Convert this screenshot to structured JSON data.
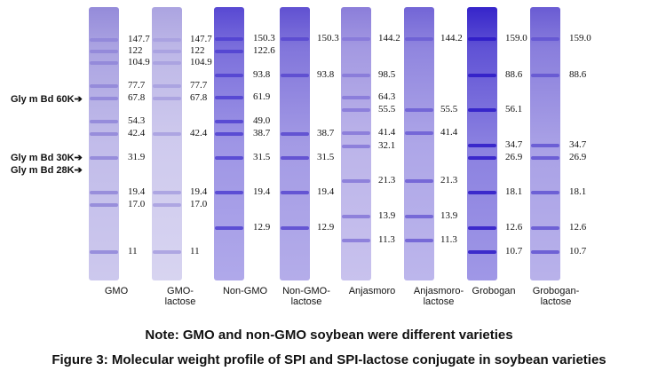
{
  "lanes": [
    {
      "name": "GMO",
      "color": "#8f85d8",
      "bands": [
        "147.7",
        "122",
        "104.9",
        "77.7",
        "67.8",
        "54.3",
        "42.4",
        "31.9",
        "19.4",
        "17.0",
        "11"
      ]
    },
    {
      "name": "GMO-\nlactose",
      "color": "#a79fdf",
      "bands": [
        "147.7",
        "122",
        "104.9",
        "77.7",
        "67.8",
        "42.4",
        "19.4",
        "17.0",
        "11"
      ]
    },
    {
      "name": "Non-GMO",
      "color": "#4f3fd0",
      "bands": [
        "150.3",
        "122.6",
        "93.8",
        "61.9",
        "49.0",
        "38.7",
        "31.5",
        "19.4",
        "12.9"
      ]
    },
    {
      "name": "Non-GMO-\nlactose",
      "color": "#5848cf",
      "bands": [
        "150.3",
        "93.8",
        "38.7",
        "31.5",
        "19.4",
        "12.9"
      ]
    },
    {
      "name": "Anjasmoro",
      "color": "#8577d8",
      "bands": [
        "144.2",
        "98.5",
        "64.3",
        "55.5",
        "41.4",
        "32.1",
        "21.3",
        "13.9",
        "11.3"
      ]
    },
    {
      "name": "Anjasmoro-\nlactose",
      "color": "#6b5dd4",
      "bands": [
        "144.2",
        "55.5",
        "41.4",
        "21.3",
        "13.9",
        "11.3"
      ]
    },
    {
      "name": "Grobogan",
      "color": "#2b19c7",
      "bands": [
        "159.0",
        "88.6",
        "56.1",
        "34.7",
        "26.9",
        "18.1",
        "12.6",
        "10.7"
      ]
    },
    {
      "name": "Grobogan-\nlactose",
      "color": "#6253d1",
      "bands": [
        "159.0",
        "88.6",
        "34.7",
        "26.9",
        "18.1",
        "12.6",
        "10.7"
      ]
    }
  ],
  "markers": [
    "Gly m Bd 60K",
    "Gly m Bd 30K",
    "Gly m Bd 28K"
  ],
  "note": "Note: GMO and non-GMO soybean were different varieties",
  "caption": "Figure 3: Molecular weight profile of SPI and SPI-lactose conjugate in soybean varieties"
}
